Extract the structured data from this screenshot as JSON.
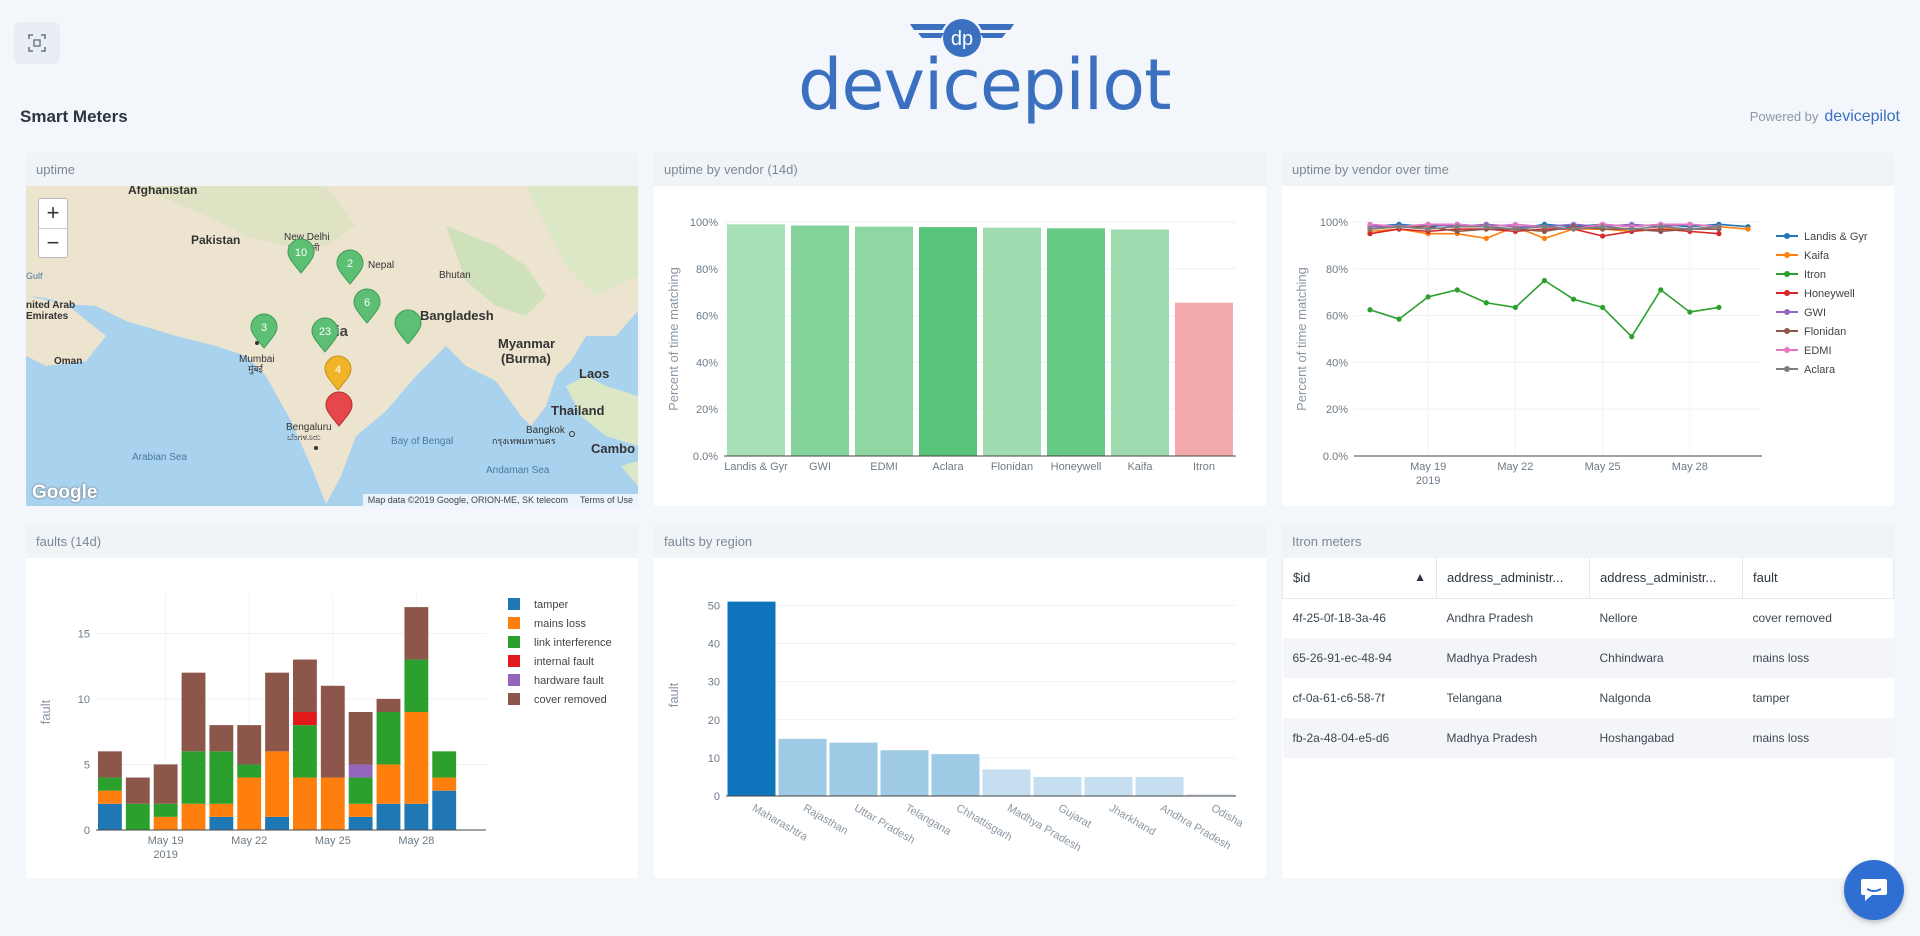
{
  "header": {
    "dashboard_title": "Smart Meters",
    "logo_text": "devicepilot",
    "powered_by": "Powered by",
    "powered_brand": "devicepilot"
  },
  "panels": {
    "uptime": {
      "title": "uptime",
      "map": {
        "labels": [
          "Afghanistan",
          "Pakistan",
          "New Delhi",
          "नई दिल्ली",
          "Nepal",
          "Bhutan",
          "Bangladesh",
          "India",
          "Myanmar",
          "(Burma)",
          "Laos",
          "Thailand",
          "Mumbai",
          "मुंबई",
          "Bengaluru",
          "ಬೆಂಗಳೂರು",
          "Bangkok",
          "กรุงเทพมหานคร",
          "Cambo",
          "Arabian Sea",
          "Bay of Bengal",
          "Andaman Sea",
          "Oman",
          "nited Arab",
          "Emirates",
          "Gulf"
        ],
        "zoom_in": "+",
        "zoom_out": "−",
        "google": "Google",
        "attribution": "Map data ©2019 Google, ORION-ME, SK telecom",
        "terms": "Terms of Use",
        "markers": [
          {
            "label": "10",
            "color": "#5cbf73"
          },
          {
            "label": "2",
            "color": "#5cbf73"
          },
          {
            "label": "6",
            "color": "#5cbf73"
          },
          {
            "label": "",
            "color": "#5cbf73"
          },
          {
            "label": "3",
            "color": "#5cbf73"
          },
          {
            "label": "23",
            "color": "#5cbf73"
          },
          {
            "label": "4",
            "color": "#f0b429"
          },
          {
            "label": "",
            "color": "#e5474a"
          }
        ]
      }
    },
    "uptime_by_vendor": {
      "title": "uptime by vendor (14d)"
    },
    "uptime_over_time": {
      "title": "uptime by vendor over time"
    },
    "faults": {
      "title": "faults (14d)"
    },
    "faults_by_region": {
      "title": "faults by region"
    },
    "itron_meters": {
      "title": "Itron meters",
      "columns": [
        "$id",
        "address_administr...",
        "address_administr...",
        "fault"
      ],
      "rows": [
        [
          "4f-25-0f-18-3a-46",
          "Andhra Pradesh",
          "Nellore",
          "cover removed"
        ],
        [
          "65-26-91-ec-48-94",
          "Madhya Pradesh",
          "Chhindwara",
          "mains loss"
        ],
        [
          "cf-0a-61-c6-58-7f",
          "Telangana",
          "Nalgonda",
          "tamper"
        ],
        [
          "fb-2a-48-04-e5-d6",
          "Madhya Pradesh",
          "Hoshangabad",
          "mains loss"
        ]
      ]
    }
  },
  "chart_data": [
    {
      "type": "bar",
      "title": "uptime by vendor (14d)",
      "ylabel": "Percent of time matching",
      "ylim": [
        0,
        100
      ],
      "yticks": [
        "0.0%",
        "20%",
        "40%",
        "60%",
        "80%",
        "100%"
      ],
      "categories": [
        "Landis & Gyr",
        "GWI",
        "EDMI",
        "Aclara",
        "Flonidan",
        "Honeywell",
        "Kaifa",
        "Itron"
      ],
      "values": [
        99,
        98.5,
        98,
        97.8,
        97.6,
        97.3,
        96.8,
        65.5
      ],
      "colors": [
        "#a8e0b8",
        "#84d39a",
        "#8ed7a3",
        "#57c479",
        "#a0dcb0",
        "#66c985",
        "#9fdbaf",
        "#f4aaaa"
      ]
    },
    {
      "type": "line",
      "title": "uptime by vendor over time",
      "ylabel": "Percent of time matching",
      "ylim": [
        0,
        100
      ],
      "yticks": [
        "0.0%",
        "20%",
        "40%",
        "60%",
        "80%",
        "100%"
      ],
      "x": [
        "2019-05-17",
        "2019-05-18",
        "2019-05-19",
        "2019-05-20",
        "2019-05-21",
        "2019-05-22",
        "2019-05-23",
        "2019-05-24",
        "2019-05-25",
        "2019-05-26",
        "2019-05-27",
        "2019-05-28",
        "2019-05-29",
        "2019-05-30"
      ],
      "xticks": [
        {
          "date": "2019-05-19",
          "label": "May 19",
          "sub": "2019"
        },
        {
          "date": "2019-05-22",
          "label": "May 22"
        },
        {
          "date": "2019-05-25",
          "label": "May 25"
        },
        {
          "date": "2019-05-28",
          "label": "May 28"
        }
      ],
      "legend_position": "right",
      "series": [
        {
          "name": "Landis & Gyr",
          "color": "#1f77b4",
          "values": [
            98,
            99,
            98,
            99,
            98,
            97,
            99,
            98,
            99,
            98,
            99,
            98,
            99,
            98
          ]
        },
        {
          "name": "Kaifa",
          "color": "#ff7f0e",
          "values": [
            96,
            97,
            95,
            95,
            93,
            98,
            93,
            97,
            97,
            96,
            97,
            97,
            98,
            97
          ]
        },
        {
          "name": "Itron",
          "color": "#2ca02c",
          "values": [
            62.5,
            58.5,
            68,
            71,
            65.5,
            63.5,
            75,
            67,
            63.5,
            51,
            71,
            61.5,
            63.5,
            null
          ]
        },
        {
          "name": "Honeywell",
          "color": "#d62728",
          "values": [
            95,
            97,
            96,
            97,
            97,
            96,
            97,
            97,
            94,
            96,
            97,
            96,
            95,
            null
          ]
        },
        {
          "name": "GWI",
          "color": "#9467bd",
          "values": [
            98,
            98,
            99,
            98,
            99,
            98,
            98,
            99,
            98,
            99,
            98,
            99,
            98,
            null
          ]
        },
        {
          "name": "Flonidan",
          "color": "#8c564b",
          "values": [
            97,
            98,
            98,
            96,
            97,
            97,
            96,
            98,
            97,
            97,
            96,
            97,
            97,
            null
          ]
        },
        {
          "name": "EDMI",
          "color": "#e377c2",
          "values": [
            99,
            98,
            99,
            99,
            98,
            99,
            98,
            97,
            99,
            98,
            99,
            99,
            98,
            null
          ]
        },
        {
          "name": "Aclara",
          "color": "#7f7f7f",
          "values": [
            97,
            98,
            97,
            98,
            98,
            97,
            98,
            97,
            98,
            97,
            98,
            97,
            98,
            null
          ]
        }
      ]
    },
    {
      "type": "bar",
      "stacked": true,
      "title": "faults (14d)",
      "ylabel": "fault",
      "ylim": [
        0,
        18
      ],
      "yticks": [
        0,
        5,
        10,
        15
      ],
      "categories": [
        "2019-05-17",
        "2019-05-18",
        "2019-05-19",
        "2019-05-20",
        "2019-05-21",
        "2019-05-22",
        "2019-05-23",
        "2019-05-24",
        "2019-05-25",
        "2019-05-26",
        "2019-05-27",
        "2019-05-28",
        "2019-05-29",
        "2019-05-30"
      ],
      "xticks": [
        {
          "index": 2,
          "label": "May 19",
          "sub": "2019"
        },
        {
          "index": 5,
          "label": "May 22"
        },
        {
          "index": 8,
          "label": "May 25"
        },
        {
          "index": 11,
          "label": "May 28"
        }
      ],
      "legend_position": "right",
      "series": [
        {
          "name": "tamper",
          "color": "#1f77b4",
          "values": [
            2,
            0,
            0,
            0,
            1,
            0,
            1,
            0,
            0,
            1,
            2,
            2,
            3,
            0
          ]
        },
        {
          "name": "mains loss",
          "color": "#ff7f0e",
          "values": [
            1,
            0,
            1,
            2,
            1,
            4,
            5,
            4,
            4,
            1,
            3,
            7,
            1,
            0
          ]
        },
        {
          "name": "link interference",
          "color": "#2ca02c",
          "values": [
            1,
            2,
            1,
            4,
            4,
            1,
            0,
            4,
            0,
            2,
            4,
            4,
            2,
            0
          ]
        },
        {
          "name": "internal fault",
          "color": "#e31a1c",
          "values": [
            0,
            0,
            0,
            0,
            0,
            0,
            0,
            1,
            0,
            0,
            0,
            0,
            0,
            0
          ]
        },
        {
          "name": "hardware fault",
          "color": "#9467bd",
          "values": [
            0,
            0,
            0,
            0,
            0,
            0,
            0,
            0,
            0,
            1,
            0,
            0,
            0,
            0
          ]
        },
        {
          "name": "cover removed",
          "color": "#8c564b",
          "values": [
            2,
            2,
            3,
            6,
            2,
            3,
            6,
            4,
            7,
            4,
            1,
            4,
            0,
            0
          ]
        }
      ]
    },
    {
      "type": "bar",
      "title": "faults by region",
      "ylabel": "fault",
      "ylim": [
        0,
        53
      ],
      "yticks": [
        0,
        10,
        20,
        30,
        40,
        50
      ],
      "categories": [
        "Maharashtra",
        "Rajasthan",
        "Uttar Pradesh",
        "Telangana",
        "Chhattisgarh",
        "Madhya Pradesh",
        "Gujarat",
        "Jharkhand",
        "Andhra Pradesh",
        "Odisha"
      ],
      "values": [
        51,
        15,
        14,
        12,
        11,
        7,
        5,
        5,
        5,
        0.5
      ],
      "colors": [
        "#0e75bc",
        "#9ecae6",
        "#9ecae6",
        "#9ecae6",
        "#9ecae6",
        "#c6dff0",
        "#c6dff0",
        "#c6dff0",
        "#c6dff0",
        "#dde9f4"
      ]
    }
  ],
  "chat": {
    "icon": "chat-icon"
  }
}
